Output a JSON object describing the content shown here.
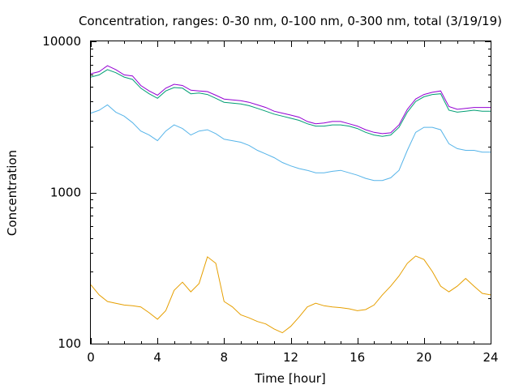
{
  "chart_data": {
    "type": "line",
    "title": "Concentration, ranges: 0-30 nm, 0-100 nm, 0-300 nm, total (3/19/19)",
    "xlabel": "Time [hour]",
    "ylabel": "Concentration",
    "xlim": [
      0,
      24
    ],
    "ylim": [
      100,
      10000
    ],
    "yscale": "log",
    "grid": false,
    "x_ticks": [
      0,
      4,
      8,
      12,
      16,
      20,
      24
    ],
    "x_tick_labels": [
      "0",
      "4",
      "8",
      "12",
      "16",
      "20",
      "24"
    ],
    "y_ticks": [
      100,
      1000,
      10000
    ],
    "y_tick_labels": [
      "100",
      "1000",
      "10000"
    ],
    "series": [
      {
        "color": "#e69f00",
        "x": [
          0,
          0.5,
          1,
          1.5,
          2,
          2.5,
          3,
          3.5,
          4,
          4.5,
          5,
          5.5,
          6,
          6.5,
          7,
          7.5,
          8,
          8.5,
          9,
          9.5,
          10,
          10.5,
          11,
          11.5,
          12,
          12.5,
          13,
          13.5,
          14,
          14.5,
          15,
          15.5,
          16,
          16.5,
          17,
          17.5,
          18,
          18.5,
          19,
          19.5,
          20,
          20.5,
          21,
          21.5,
          22,
          22.5,
          23,
          23.5,
          24
        ],
        "y": [
          245,
          210,
          190,
          185,
          180,
          178,
          175,
          160,
          145,
          165,
          225,
          255,
          220,
          250,
          375,
          340,
          190,
          175,
          155,
          148,
          140,
          135,
          125,
          118,
          130,
          150,
          175,
          185,
          178,
          175,
          173,
          170,
          165,
          168,
          180,
          210,
          240,
          280,
          340,
          380,
          360,
          300,
          240,
          220,
          240,
          270,
          240,
          215,
          210
        ]
      },
      {
        "color": "#56b4e9",
        "x": [
          0,
          0.5,
          1,
          1.5,
          2,
          2.5,
          3,
          3.5,
          4,
          4.5,
          5,
          5.5,
          6,
          6.5,
          7,
          7.5,
          8,
          8.5,
          9,
          9.5,
          10,
          10.5,
          11,
          11.5,
          12,
          12.5,
          13,
          13.5,
          14,
          14.5,
          15,
          15.5,
          16,
          16.5,
          17,
          17.5,
          18,
          18.5,
          19,
          19.5,
          20,
          20.5,
          21,
          21.5,
          22,
          22.5,
          23,
          23.5,
          24
        ],
        "y": [
          3350,
          3500,
          3800,
          3400,
          3200,
          2900,
          2550,
          2400,
          2200,
          2550,
          2800,
          2650,
          2400,
          2550,
          2600,
          2450,
          2250,
          2200,
          2150,
          2050,
          1900,
          1800,
          1700,
          1580,
          1500,
          1440,
          1400,
          1350,
          1350,
          1380,
          1400,
          1350,
          1300,
          1240,
          1200,
          1200,
          1250,
          1400,
          1900,
          2500,
          2700,
          2700,
          2600,
          2100,
          1950,
          1900,
          1900,
          1850,
          1850
        ]
      },
      {
        "color": "#009e73",
        "x": [
          0,
          0.5,
          1,
          1.5,
          2,
          2.5,
          3,
          3.5,
          4,
          4.5,
          5,
          5.5,
          6,
          6.5,
          7,
          7.5,
          8,
          8.5,
          9,
          9.5,
          10,
          10.5,
          11,
          11.5,
          12,
          12.5,
          13,
          13.5,
          14,
          14.5,
          15,
          15.5,
          16,
          16.5,
          17,
          17.5,
          18,
          18.5,
          19,
          19.5,
          20,
          20.5,
          21,
          21.5,
          22,
          22.5,
          23,
          23.5,
          24
        ],
        "y": [
          5800,
          6000,
          6500,
          6200,
          5800,
          5600,
          4900,
          4500,
          4200,
          4700,
          4950,
          4900,
          4500,
          4550,
          4450,
          4200,
          3950,
          3900,
          3850,
          3750,
          3600,
          3450,
          3300,
          3200,
          3100,
          3000,
          2850,
          2750,
          2750,
          2800,
          2800,
          2750,
          2650,
          2500,
          2400,
          2350,
          2400,
          2700,
          3400,
          4000,
          4300,
          4450,
          4500,
          3500,
          3400,
          3450,
          3500,
          3450,
          3450
        ]
      },
      {
        "color": "#9400d3",
        "x": [
          0,
          0.5,
          1,
          1.5,
          2,
          2.5,
          3,
          3.5,
          4,
          4.5,
          5,
          5.5,
          6,
          6.5,
          7,
          7.5,
          8,
          8.5,
          9,
          9.5,
          10,
          10.5,
          11,
          11.5,
          12,
          12.5,
          13,
          13.5,
          14,
          14.5,
          15,
          15.5,
          16,
          16.5,
          17,
          17.5,
          18,
          18.5,
          19,
          19.5,
          20,
          20.5,
          21,
          21.5,
          22,
          22.5,
          23,
          23.5,
          24
        ],
        "y": [
          6100,
          6300,
          6900,
          6500,
          6000,
          5900,
          5100,
          4700,
          4400,
          4900,
          5200,
          5100,
          4750,
          4700,
          4650,
          4400,
          4150,
          4100,
          4050,
          3950,
          3800,
          3650,
          3450,
          3350,
          3250,
          3150,
          2950,
          2850,
          2880,
          2950,
          2950,
          2850,
          2750,
          2600,
          2500,
          2450,
          2480,
          2800,
          3550,
          4150,
          4450,
          4600,
          4700,
          3700,
          3550,
          3600,
          3650,
          3650,
          3650
        ]
      }
    ]
  }
}
